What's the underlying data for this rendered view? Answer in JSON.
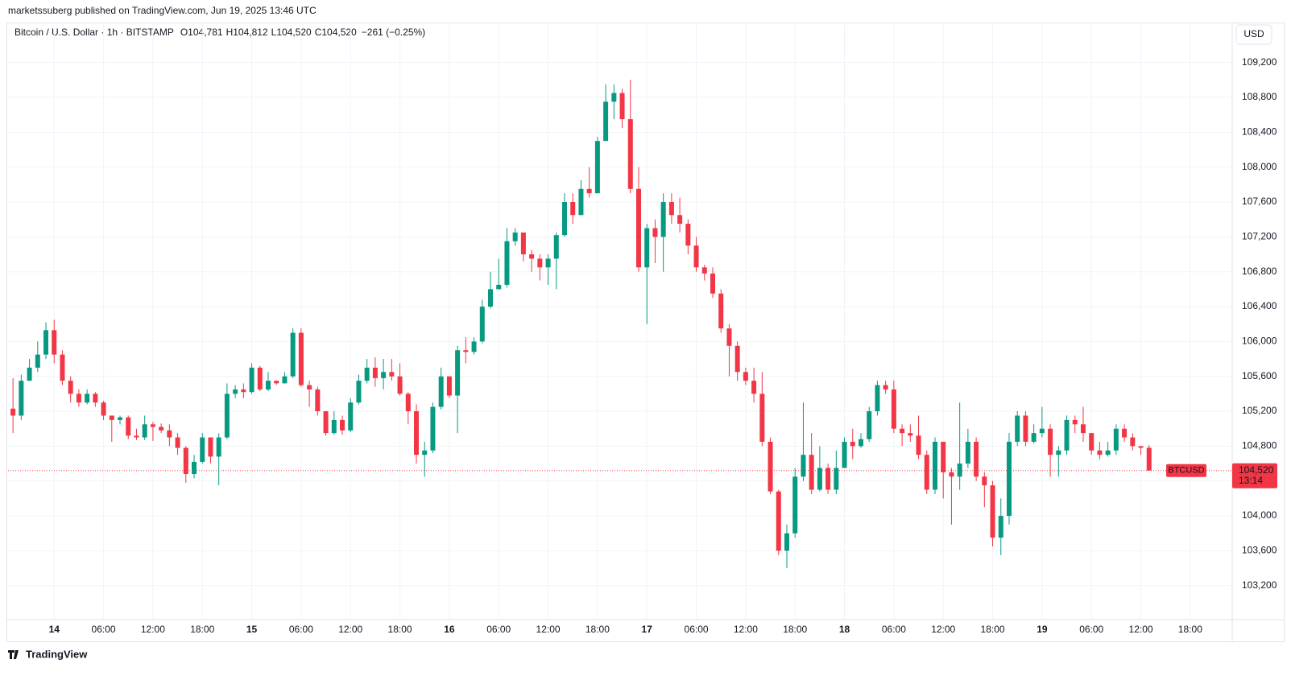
{
  "page": {
    "publisher": "marketssuberg published on TradingView.com, Jun 19, 2025 13:46 UTC",
    "brand": "TradingView",
    "currency_button": "USD"
  },
  "chart_data": {
    "type": "candlestick",
    "symbol": "Bitcoin / U.S. Dollar · 1h · BITSTAMP",
    "ohlc_letters": [
      "O",
      "H",
      "L",
      "C"
    ],
    "last_labels": [
      "104,781",
      "104,812",
      "104,520",
      "104,520"
    ],
    "change_label": "−261 (−0.25%)",
    "up_color": "#089981",
    "down_color": "#f23645",
    "price_line": {
      "name": "BTCUSD",
      "value": 104520,
      "label": "104,520",
      "countdown": "13:14",
      "color": "#f23645"
    },
    "xlim": [
      -0.6,
      148.1
    ],
    "xticks": [
      {
        "value": 5,
        "label": "14"
      },
      {
        "value": 11,
        "label": "06:00"
      },
      {
        "value": 17,
        "label": "12:00"
      },
      {
        "value": 23,
        "label": "18:00"
      },
      {
        "value": 29,
        "label": "15"
      },
      {
        "value": 35,
        "label": "06:00"
      },
      {
        "value": 41,
        "label": "12:00"
      },
      {
        "value": 47,
        "label": "18:00"
      },
      {
        "value": 53,
        "label": "16"
      },
      {
        "value": 59,
        "label": "06:00"
      },
      {
        "value": 65,
        "label": "12:00"
      },
      {
        "value": 71,
        "label": "18:00"
      },
      {
        "value": 77,
        "label": "17"
      },
      {
        "value": 83,
        "label": "06:00"
      },
      {
        "value": 89,
        "label": "12:00"
      },
      {
        "value": 95,
        "label": "18:00"
      },
      {
        "value": 101,
        "label": "18"
      },
      {
        "value": 107,
        "label": "06:00"
      },
      {
        "value": 113,
        "label": "12:00"
      },
      {
        "value": 119,
        "label": "18:00"
      },
      {
        "value": 125,
        "label": "19"
      },
      {
        "value": 131,
        "label": "06:00"
      },
      {
        "value": 137,
        "label": "12:00"
      },
      {
        "value": 143,
        "label": "18:00"
      }
    ],
    "ylim": [
      102810,
      109640
    ],
    "yticks": [
      {
        "value": 103200,
        "label": "103,200"
      },
      {
        "value": 103600,
        "label": "103,600"
      },
      {
        "value": 104000,
        "label": "104,000"
      },
      {
        "value": 104400,
        "label": "104,400"
      },
      {
        "value": 104800,
        "label": "104,800"
      },
      {
        "value": 105200,
        "label": "105,200"
      },
      {
        "value": 105600,
        "label": "105,600"
      },
      {
        "value": 106000,
        "label": "106,000"
      },
      {
        "value": 106400,
        "label": "106,400"
      },
      {
        "value": 106800,
        "label": "106,800"
      },
      {
        "value": 107200,
        "label": "107,200"
      },
      {
        "value": 107600,
        "label": "107,600"
      },
      {
        "value": 108000,
        "label": "108,000"
      },
      {
        "value": 108400,
        "label": "108,400"
      },
      {
        "value": 108800,
        "label": "108,800"
      },
      {
        "value": 109200,
        "label": "109,200"
      }
    ],
    "grid": true,
    "open": [
      105230,
      105150,
      105550,
      105700,
      105850,
      106130,
      105850,
      105550,
      105400,
      105300,
      105400,
      105300,
      105150,
      105100,
      105130,
      104920,
      104900,
      105050,
      105020,
      104980,
      104900,
      104780,
      104480,
      104620,
      104900,
      104680,
      104900,
      105400,
      105450,
      105420,
      105700,
      105450,
      105550,
      105520,
      105600,
      106100,
      105500,
      105450,
      105200,
      104950,
      105100,
      104980,
      105300,
      105550,
      105700,
      105580,
      105650,
      105600,
      105400,
      105200,
      104700,
      104750,
      105250,
      105600,
      105380,
      105900,
      105880,
      106000,
      106400,
      106600,
      106650,
      107150,
      107250,
      107000,
      106950,
      106850,
      106950,
      107220,
      107600,
      107450,
      107750,
      107700,
      108300,
      108750,
      108850,
      108550,
      107750,
      106850,
      107300,
      107200,
      107600,
      107450,
      107350,
      107100,
      106850,
      106780,
      106550,
      106150,
      105950,
      105650,
      105550,
      105400,
      104850,
      104280,
      103600,
      103800,
      104450,
      104700,
      104300,
      104550,
      104300,
      104550,
      104850,
      104800,
      104880,
      105200,
      105500,
      105450,
      105000,
      104950,
      104920,
      104700,
      104300,
      104850,
      104500,
      104450,
      104600,
      104850,
      104450,
      104350,
      103750,
      104000,
      104850,
      105150,
      104850,
      104950,
      105000,
      104700,
      104750,
      105100,
      105050,
      104950,
      104750,
      104700,
      104750,
      105000,
      104900,
      104800,
      104781
    ],
    "high": [
      105580,
      105620,
      105800,
      106000,
      106220,
      106250,
      105900,
      105600,
      105450,
      105450,
      105420,
      105320,
      105150,
      105150,
      105150,
      105000,
      105150,
      105080,
      105060,
      105050,
      104950,
      104800,
      104700,
      104950,
      104900,
      104950,
      105520,
      105500,
      105520,
      105750,
      105720,
      105650,
      105550,
      105650,
      106150,
      106150,
      105550,
      105480,
      105200,
      105200,
      105150,
      105350,
      105620,
      105800,
      105820,
      105800,
      105800,
      105750,
      105420,
      105280,
      104850,
      105300,
      105700,
      105600,
      105950,
      106050,
      106050,
      106480,
      106800,
      106950,
      107300,
      107300,
      107250,
      107050,
      107000,
      107000,
      107250,
      107700,
      107700,
      107850,
      108000,
      108350,
      108950,
      108950,
      108900,
      109000,
      108000,
      107350,
      107400,
      107700,
      107700,
      107650,
      107400,
      107200,
      106880,
      106850,
      106600,
      106200,
      106000,
      105700,
      105700,
      105650,
      104900,
      104300,
      103900,
      104550,
      105300,
      104950,
      104800,
      104600,
      104750,
      104900,
      105000,
      104950,
      105250,
      105550,
      105550,
      105550,
      105050,
      105050,
      105150,
      104750,
      104900,
      104850,
      104550,
      105300,
      105000,
      104900,
      104500,
      104400,
      104200,
      104950,
      105200,
      105200,
      105050,
      105250,
      105050,
      104800,
      105150,
      105150,
      105250,
      104950,
      104850,
      104850,
      105050,
      105050,
      104950,
      104800,
      104812
    ],
    "low": [
      104950,
      105100,
      105550,
      105650,
      105800,
      105750,
      105500,
      105300,
      105250,
      105280,
      105250,
      105100,
      104850,
      105050,
      104880,
      104870,
      104870,
      104860,
      104950,
      104800,
      104700,
      104380,
      104430,
      104600,
      104600,
      104350,
      104880,
      105350,
      105350,
      105400,
      105430,
      105430,
      105500,
      105520,
      105580,
      105480,
      105250,
      105150,
      104920,
      104930,
      104930,
      104960,
      105280,
      105520,
      105480,
      105450,
      105550,
      105380,
      105050,
      104600,
      104450,
      104720,
      105220,
      105350,
      104950,
      105750,
      105850,
      105980,
      106380,
      106600,
      106620,
      107100,
      106920,
      106800,
      106700,
      106650,
      106600,
      107200,
      107350,
      107450,
      107650,
      107700,
      108300,
      108550,
      108450,
      107700,
      106800,
      106200,
      106900,
      106800,
      107350,
      107250,
      107000,
      106800,
      106700,
      106500,
      106100,
      105600,
      105550,
      105500,
      105300,
      104800,
      104250,
      103550,
      103400,
      103750,
      104400,
      104250,
      104280,
      104250,
      104250,
      104550,
      104650,
      104780,
      104850,
      105150,
      105400,
      104950,
      104800,
      104850,
      104650,
      104250,
      104250,
      104200,
      103900,
      104300,
      104550,
      104400,
      104100,
      103650,
      103550,
      103900,
      104800,
      104800,
      104830,
      104900,
      104450,
      104450,
      104700,
      104950,
      104850,
      104700,
      104650,
      104680,
      104700,
      104850,
      104750,
      104700,
      104520
    ],
    "close": [
      105150,
      105550,
      105700,
      105850,
      106130,
      105850,
      105550,
      105400,
      105300,
      105400,
      105300,
      105150,
      105100,
      105130,
      104920,
      104900,
      105050,
      105020,
      104980,
      104900,
      104780,
      104480,
      104620,
      104900,
      104680,
      104900,
      105400,
      105450,
      105420,
      105700,
      105450,
      105550,
      105520,
      105600,
      106100,
      105500,
      105450,
      105200,
      104950,
      105100,
      104980,
      105300,
      105550,
      105700,
      105580,
      105650,
      105600,
      105400,
      105200,
      104700,
      104750,
      105250,
      105600,
      105380,
      105900,
      105880,
      106000,
      106400,
      106600,
      106650,
      107150,
      107250,
      107000,
      106950,
      106850,
      106950,
      107220,
      107600,
      107450,
      107750,
      107700,
      108300,
      108750,
      108850,
      108550,
      107750,
      106850,
      107300,
      107200,
      107600,
      107450,
      107350,
      107100,
      106850,
      106780,
      106550,
      106150,
      105950,
      105650,
      105550,
      105400,
      104850,
      104280,
      103600,
      103800,
      104450,
      104700,
      104300,
      104550,
      104300,
      104550,
      104850,
      104800,
      104880,
      105200,
      105500,
      105450,
      105000,
      104950,
      104920,
      104700,
      104300,
      104850,
      104500,
      104450,
      104600,
      104850,
      104450,
      104350,
      103750,
      104000,
      104850,
      105150,
      104850,
      104950,
      105000,
      104700,
      104750,
      105100,
      105050,
      104950,
      104750,
      104700,
      104750,
      105000,
      104900,
      104800,
      104781,
      104520
    ]
  }
}
